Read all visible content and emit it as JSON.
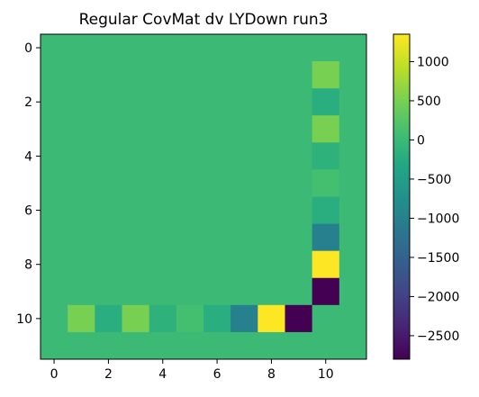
{
  "chart_data": {
    "type": "heatmap",
    "title": "Regular CovMat dv LYDown run3",
    "xlabel": "",
    "ylabel": "",
    "rows": 12,
    "cols": 12,
    "x_ticks": [
      0,
      2,
      4,
      6,
      8,
      10
    ],
    "y_ticks": [
      0,
      2,
      4,
      6,
      8,
      10
    ],
    "x_tick_labels": [
      "0",
      "2",
      "4",
      "6",
      "8",
      "10"
    ],
    "y_tick_labels": [
      "0",
      "2",
      "4",
      "6",
      "8",
      "10"
    ],
    "default_value": 0,
    "nonzero_cells": [
      {
        "row": 1,
        "col": 10,
        "value": 500
      },
      {
        "row": 2,
        "col": 10,
        "value": -200
      },
      {
        "row": 3,
        "col": 10,
        "value": 500
      },
      {
        "row": 4,
        "col": 10,
        "value": -150
      },
      {
        "row": 5,
        "col": 10,
        "value": 100
      },
      {
        "row": 6,
        "col": 10,
        "value": -200
      },
      {
        "row": 7,
        "col": 10,
        "value": -1000
      },
      {
        "row": 8,
        "col": 10,
        "value": 1350
      },
      {
        "row": 9,
        "col": 10,
        "value": -2800
      },
      {
        "row": 10,
        "col": 1,
        "value": 500
      },
      {
        "row": 10,
        "col": 2,
        "value": -200
      },
      {
        "row": 10,
        "col": 3,
        "value": 500
      },
      {
        "row": 10,
        "col": 4,
        "value": -150
      },
      {
        "row": 10,
        "col": 5,
        "value": 100
      },
      {
        "row": 10,
        "col": 6,
        "value": -200
      },
      {
        "row": 10,
        "col": 7,
        "value": -1000
      },
      {
        "row": 10,
        "col": 8,
        "value": 1350
      },
      {
        "row": 10,
        "col": 9,
        "value": -2800
      }
    ],
    "colorbar": {
      "colormap": "viridis",
      "vmin": -2800,
      "vmax": 1350,
      "ticks": [
        1000,
        500,
        0,
        -500,
        -1000,
        -1500,
        -2000,
        -2500
      ],
      "tick_labels": [
        "1000",
        "500",
        "0",
        "−500",
        "−1000",
        "−1500",
        "−2000",
        "−2500"
      ]
    },
    "grid": false,
    "legend": "none"
  }
}
